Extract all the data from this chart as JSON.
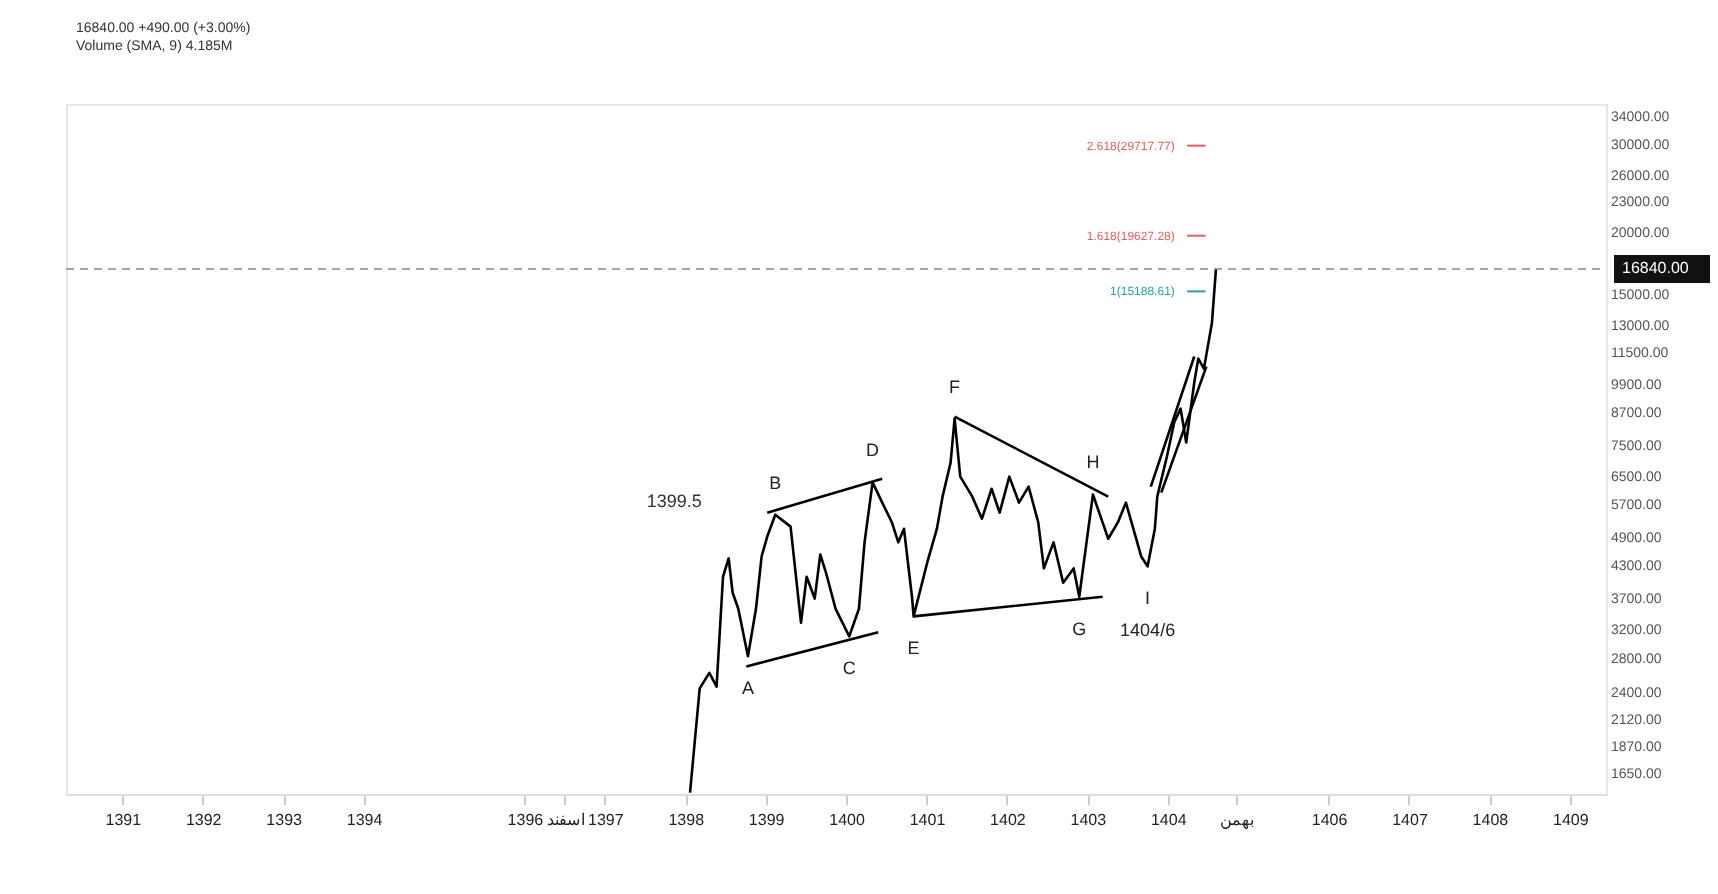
{
  "chart_data": {
    "type": "line",
    "log": "y",
    "xlim": [
      1390.3,
      1409.45
    ],
    "ylim": [
      1500,
      36000
    ],
    "xticks": [
      1391,
      1392,
      1393,
      1394,
      1396,
      {
        "value": 1396.5,
        "label": "اسفند"
      },
      1397,
      1398,
      1399,
      1400,
      1401,
      1402,
      1403,
      1404,
      {
        "value": 1404.85,
        "label": "بهمن"
      },
      1406,
      1407,
      1408,
      1409
    ],
    "yticks": [
      {
        "value": 1650,
        "label": "1650.00"
      },
      {
        "value": 1870,
        "label": "1870.00"
      },
      {
        "value": 2120,
        "label": "2120.00"
      },
      {
        "value": 2400,
        "label": "2400.00"
      },
      {
        "value": 2800,
        "label": "2800.00"
      },
      {
        "value": 3200,
        "label": "3200.00"
      },
      {
        "value": 3700,
        "label": "3700.00"
      },
      {
        "value": 4300,
        "label": "4300.00"
      },
      {
        "value": 4900,
        "label": "4900.00"
      },
      {
        "value": 5700,
        "label": "5700.00"
      },
      {
        "value": 6500,
        "label": "6500.00"
      },
      {
        "value": 7500,
        "label": "7500.00"
      },
      {
        "value": 8700,
        "label": "8700.00"
      },
      {
        "value": 9900,
        "label": "9900.00"
      },
      {
        "value": 11500,
        "label": "11500.00"
      },
      {
        "value": 13000,
        "label": "13000.00"
      },
      {
        "value": 15000,
        "label": "15000.00"
      },
      {
        "value": 20000,
        "label": "20000.00"
      },
      {
        "value": 23000,
        "label": "23000.00"
      },
      {
        "value": 26000,
        "label": "26000.00"
      },
      {
        "value": 30000,
        "label": "30000.00"
      },
      {
        "value": 34000,
        "label": "34000.00"
      }
    ],
    "grid": false,
    "series": [
      {
        "color": "#000000",
        "x": [
          1398.06,
          1398.18,
          1398.3,
          1398.39,
          1398.47,
          1398.54,
          1398.59,
          1398.66,
          1398.78,
          1398.88,
          1398.95,
          1399.02,
          1399.12,
          1399.31,
          1399.44,
          1399.51,
          1399.61,
          1399.68,
          1399.75,
          1399.87,
          1400.04,
          1400.16,
          1400.23,
          1400.33,
          1400.45,
          1400.57,
          1400.65,
          1400.72,
          1400.82,
          1400.84,
          1401.01,
          1401.13,
          1401.2,
          1401.3,
          1401.35,
          1401.42,
          1401.57,
          1401.69,
          1401.81,
          1401.91,
          1402.03,
          1402.15,
          1402.27,
          1402.39,
          1402.46,
          1402.58,
          1402.7,
          1402.83,
          1402.9,
          1403.0,
          1403.07,
          1403.19,
          1403.26,
          1403.38,
          1403.48,
          1403.55,
          1403.67,
          1403.75,
          1403.84,
          1403.87,
          1403.99,
          1404.08,
          1404.16,
          1404.23,
          1404.33,
          1404.38,
          1404.45,
          1404.55,
          1404.6
        ],
        "values": [
          1510,
          2440,
          2620,
          2460,
          4080,
          4440,
          3790,
          3520,
          2830,
          3520,
          4480,
          4910,
          5430,
          5140,
          3300,
          4080,
          3690,
          4520,
          4160,
          3520,
          3100,
          3520,
          4780,
          6300,
          5740,
          5240,
          4780,
          5090,
          3720,
          3400,
          4360,
          5090,
          5900,
          6900,
          8450,
          6470,
          5900,
          5330,
          6120,
          5480,
          6470,
          5740,
          6180,
          5240,
          4240,
          4780,
          3970,
          4240,
          3720,
          4910,
          5960,
          5240,
          4860,
          5240,
          5740,
          5240,
          4480,
          4280,
          5090,
          5900,
          7100,
          8300,
          8850,
          7570,
          9980,
          11140,
          10640,
          13150,
          16840
        ]
      },
      {
        "color": "#000000",
        "x": [
          1398.76,
          1400.4
        ],
        "values": [
          2700,
          3160
        ]
      },
      {
        "color": "#000000",
        "x": [
          1399.02,
          1400.45
        ],
        "values": [
          5480,
          6410
        ]
      },
      {
        "color": "#000000",
        "x": [
          1400.84,
          1403.19
        ],
        "values": [
          3400,
          3720
        ]
      },
      {
        "color": "#000000",
        "x": [
          1401.35,
          1403.26
        ],
        "values": [
          8530,
          5900
        ]
      },
      {
        "color": "#000000",
        "x": [
          1403.79,
          1404.33
        ],
        "values": [
          6180,
          11250
        ]
      },
      {
        "color": "#000000",
        "x": [
          1403.92,
          1404.48
        ],
        "values": [
          6010,
          10740
        ]
      }
    ],
    "ref_lines": [
      {
        "axis": "y",
        "value": 16840,
        "label": "16840.00",
        "color": "#888888",
        "line_style": "dashed"
      },
      {
        "axis": "y",
        "value": 15188.61,
        "label": "1(15188.61)",
        "color": "#26a69a"
      },
      {
        "axis": "y",
        "value": 19627.28,
        "label": "1.618(19627.28)",
        "color": "#e0605a"
      },
      {
        "axis": "y",
        "value": 29717.77,
        "label": "2.618(29717.77)",
        "color": "#e0605a"
      }
    ],
    "annotations": [
      "16840.00 +490.00 (+3.00%)",
      "Volume (SMA, 9) 4.185M",
      {
        "text": "A",
        "x": 1398.78,
        "y": 2830
      },
      {
        "text": "B",
        "x": 1399.12,
        "y": 5430
      },
      {
        "text": "C",
        "x": 1400.04,
        "y": 3100
      },
      {
        "text": "D",
        "x": 1400.33,
        "y": 6300
      },
      {
        "text": "E",
        "x": 1400.84,
        "y": 3400
      },
      {
        "text": "F",
        "x": 1401.35,
        "y": 8450
      },
      {
        "text": "G",
        "x": 1402.9,
        "y": 3720
      },
      {
        "text": "H",
        "x": 1403.07,
        "y": 5960
      },
      {
        "text": "I",
        "x": 1403.75,
        "y": 4280
      },
      "1399.5",
      {
        "text": "1404/6",
        "x": 1403.75,
        "y": 4280
      }
    ]
  }
}
